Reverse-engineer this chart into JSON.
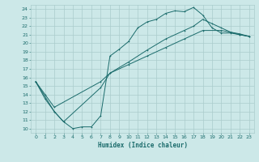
{
  "xlabel": "Humidex (Indice chaleur)",
  "bg_color": "#cce8e8",
  "grid_color": "#aacccc",
  "line_color": "#1a6b6b",
  "xlim": [
    -0.5,
    23.5
  ],
  "ylim": [
    9.5,
    24.5
  ],
  "xticks": [
    0,
    1,
    2,
    3,
    4,
    5,
    6,
    7,
    8,
    9,
    10,
    11,
    12,
    13,
    14,
    15,
    16,
    17,
    18,
    19,
    20,
    21,
    22,
    23
  ],
  "yticks": [
    10,
    11,
    12,
    13,
    14,
    15,
    16,
    17,
    18,
    19,
    20,
    21,
    22,
    23,
    24
  ],
  "line1_x": [
    0,
    1,
    2,
    3,
    4,
    5,
    6,
    7,
    8,
    9,
    10,
    11,
    12,
    13,
    14,
    15,
    16,
    17,
    18,
    19,
    20,
    21,
    22,
    23
  ],
  "line1_y": [
    15.5,
    13.5,
    12.0,
    10.8,
    10.0,
    10.2,
    10.2,
    11.5,
    18.5,
    19.3,
    20.2,
    21.8,
    22.5,
    22.8,
    23.5,
    23.8,
    23.7,
    24.2,
    23.3,
    21.8,
    21.2,
    21.2,
    21.0,
    20.8
  ],
  "line2_x": [
    0,
    1,
    2,
    7,
    8,
    10,
    12,
    14,
    16,
    18,
    20,
    21,
    22,
    23
  ],
  "line2_y": [
    15.5,
    14.0,
    12.5,
    15.5,
    16.5,
    17.5,
    18.5,
    19.5,
    20.5,
    21.5,
    21.5,
    21.3,
    21.1,
    20.8
  ],
  "line3_x": [
    0,
    2,
    3,
    7,
    8,
    10,
    12,
    14,
    16,
    17,
    18,
    19,
    20,
    21,
    22,
    23
  ],
  "line3_y": [
    15.5,
    12.0,
    10.8,
    14.8,
    16.5,
    17.8,
    19.2,
    20.5,
    21.5,
    22.0,
    22.8,
    22.3,
    21.8,
    21.3,
    21.0,
    20.8
  ]
}
